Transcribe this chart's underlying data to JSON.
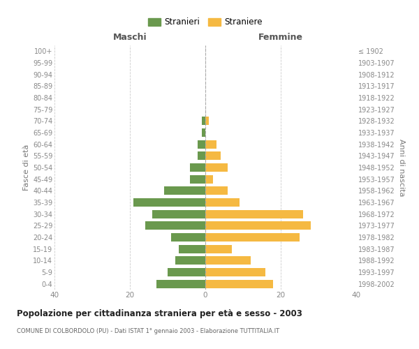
{
  "age_groups": [
    "0-4",
    "5-9",
    "10-14",
    "15-19",
    "20-24",
    "25-29",
    "30-34",
    "35-39",
    "40-44",
    "45-49",
    "50-54",
    "55-59",
    "60-64",
    "65-69",
    "70-74",
    "75-79",
    "80-84",
    "85-89",
    "90-94",
    "95-99",
    "100+"
  ],
  "birth_years": [
    "1998-2002",
    "1993-1997",
    "1988-1992",
    "1983-1987",
    "1978-1982",
    "1973-1977",
    "1968-1972",
    "1963-1967",
    "1958-1962",
    "1953-1957",
    "1948-1952",
    "1943-1947",
    "1938-1942",
    "1933-1937",
    "1928-1932",
    "1923-1927",
    "1918-1922",
    "1913-1917",
    "1908-1912",
    "1903-1907",
    "≤ 1902"
  ],
  "males": [
    13,
    10,
    8,
    7,
    9,
    16,
    14,
    19,
    11,
    4,
    4,
    2,
    2,
    1,
    1,
    0,
    0,
    0,
    0,
    0,
    0
  ],
  "females": [
    18,
    16,
    12,
    7,
    25,
    28,
    26,
    9,
    6,
    2,
    6,
    4,
    3,
    0,
    1,
    0,
    0,
    0,
    0,
    0,
    0
  ],
  "male_color": "#6a994e",
  "female_color": "#f5b942",
  "title": "Popolazione per cittadinanza straniera per età e sesso - 2003",
  "subtitle": "COMUNE DI COLBORDOLO (PU) - Dati ISTAT 1° gennaio 2003 - Elaborazione TUTTITALIA.IT",
  "xlabel_left": "Maschi",
  "xlabel_right": "Femmine",
  "ylabel_left": "Fasce di età",
  "ylabel_right": "Anni di nascita",
  "legend_male": "Stranieri",
  "legend_female": "Straniere",
  "xlim": 40,
  "background_color": "#ffffff",
  "grid_color": "#cccccc"
}
